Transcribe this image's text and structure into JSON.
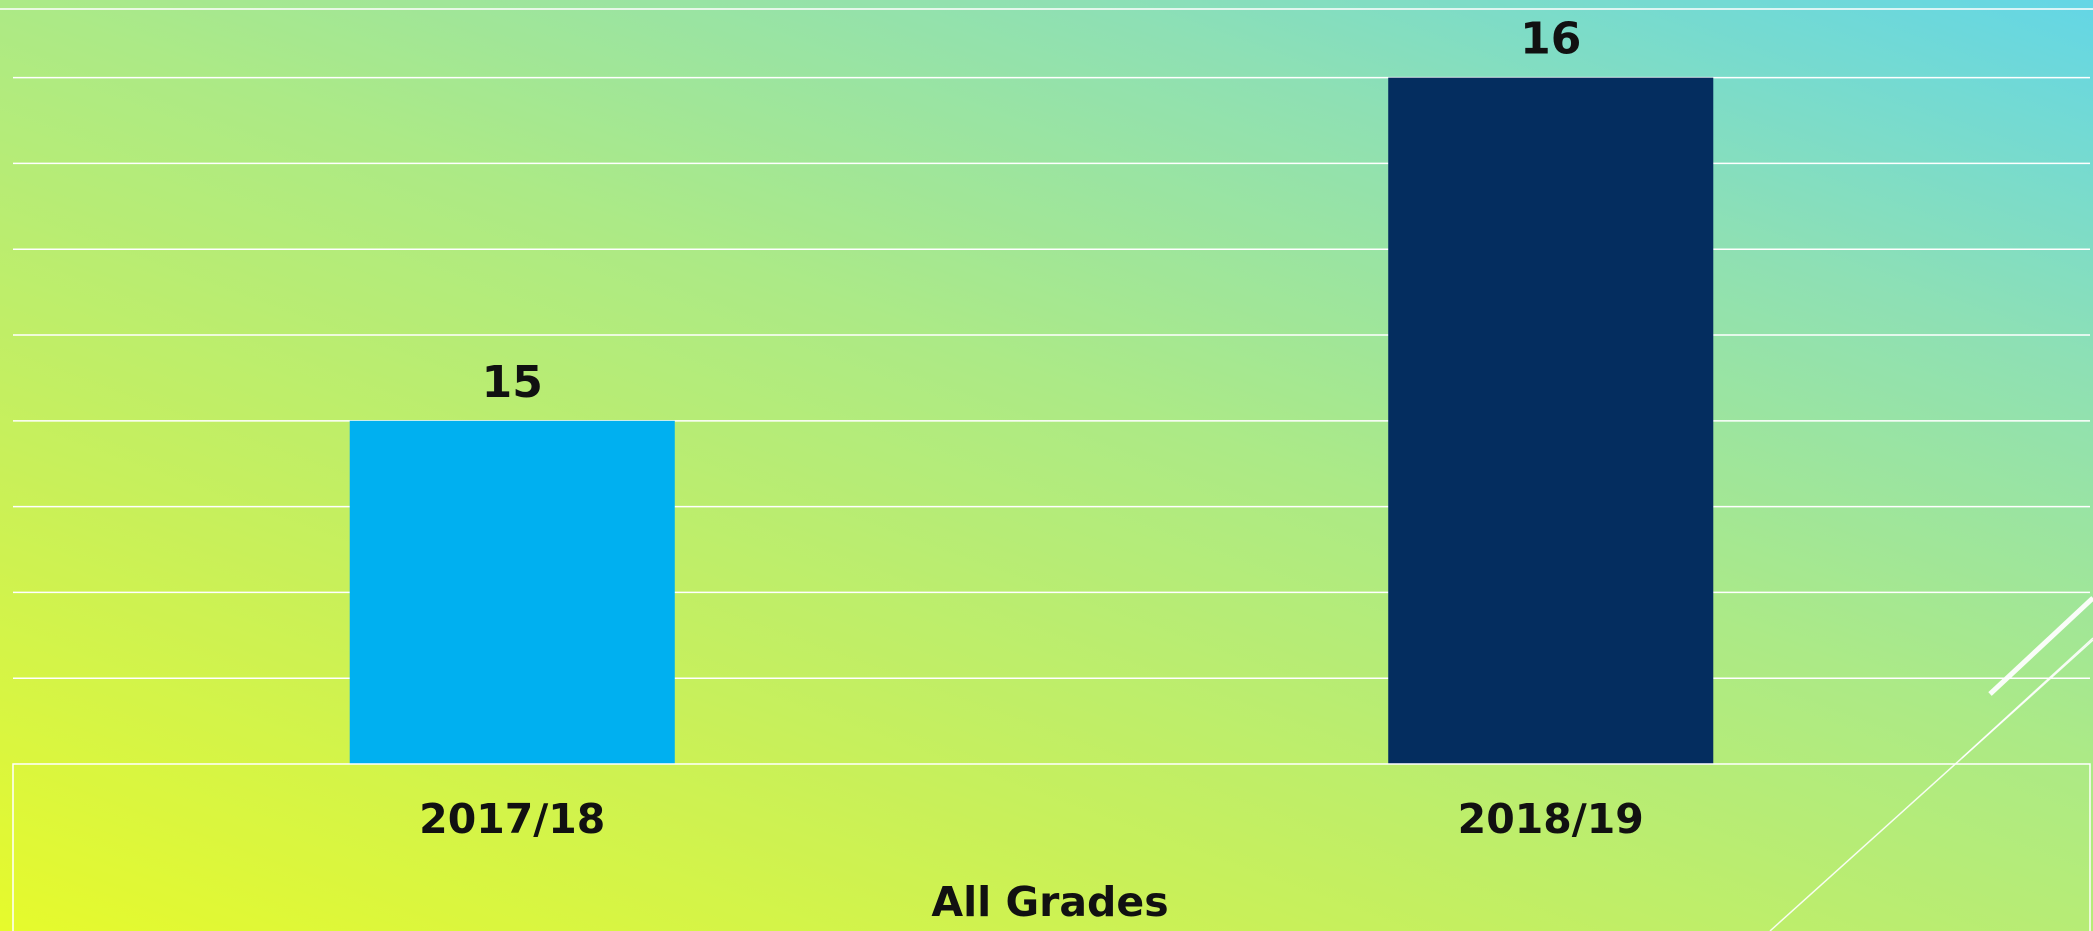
{
  "chart_data": {
    "type": "bar",
    "categories": [
      "2017/18",
      "2018/19"
    ],
    "group_label": "All Grades",
    "values": [
      15,
      16
    ],
    "data_labels": [
      "15",
      "16"
    ],
    "bar_colors": [
      "#00b0f0",
      "#042d5f"
    ],
    "ylim": [
      14,
      16.2
    ],
    "gridline_step": 0.25,
    "grid": true,
    "legend": "none",
    "title": "",
    "xlabel": "",
    "ylabel": ""
  },
  "colors": {
    "gridline": "#ffffff",
    "text": "#111111"
  }
}
